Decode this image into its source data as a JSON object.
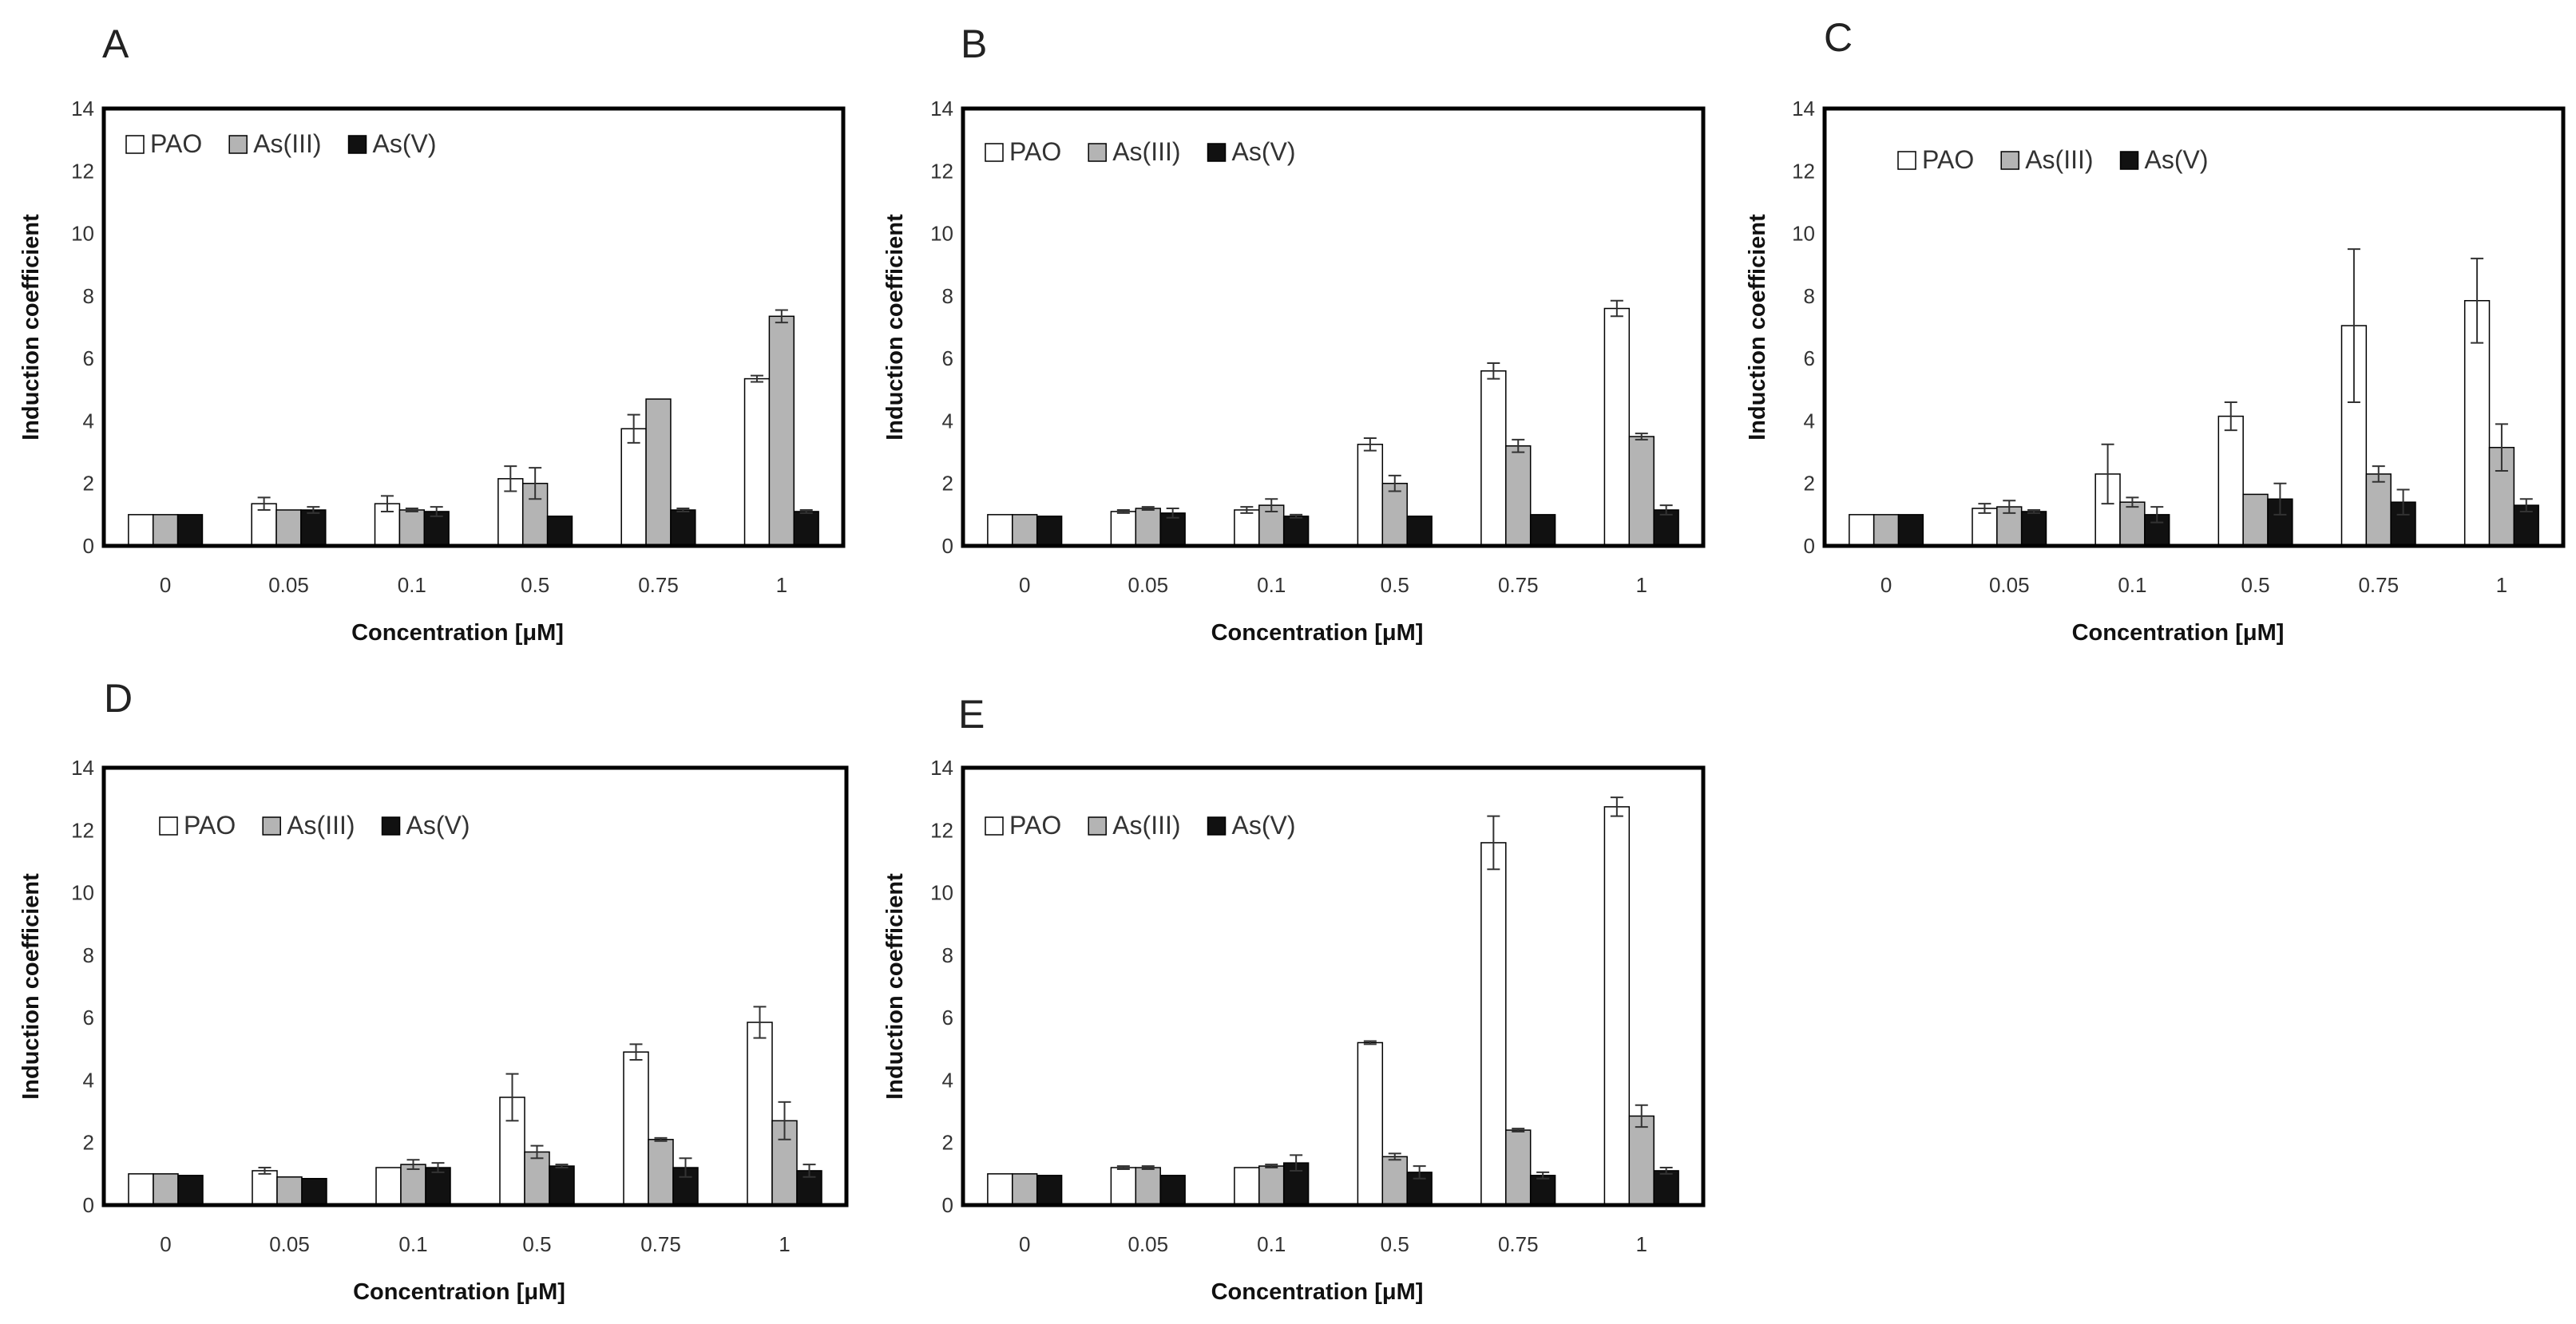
{
  "figure": {
    "colors": {
      "PAO": "#ffffff",
      "As(III)": "#b4b4b4",
      "As(V)": "#111111",
      "frame": "#000000"
    }
  },
  "chart_data": [
    {
      "panel": "A",
      "type": "bar",
      "categories": [
        "0",
        "0.05",
        "0.1",
        "0.5",
        "0.75",
        "1"
      ],
      "xlabel": "Concentration [μM]",
      "ylabel": "Induction coefficient",
      "ylim": [
        0,
        14
      ],
      "yticks": [
        "0",
        "2",
        "4",
        "6",
        "8",
        "10",
        "12",
        "14"
      ],
      "legend": "top-left",
      "series": [
        {
          "name": "PAO",
          "values": [
            1.0,
            1.35,
            1.35,
            2.15,
            3.75,
            5.35
          ],
          "errors": [
            0,
            0.2,
            0.25,
            0.4,
            0.45,
            0.1
          ]
        },
        {
          "name": "As(III)",
          "values": [
            1.0,
            1.15,
            1.15,
            2.0,
            4.7,
            7.35
          ],
          "errors": [
            0,
            0,
            0.05,
            0.5,
            0,
            0.2
          ]
        },
        {
          "name": "As(V)",
          "values": [
            1.0,
            1.15,
            1.1,
            0.95,
            1.15,
            1.1
          ],
          "errors": [
            0,
            0.1,
            0.15,
            0,
            0.05,
            0.05
          ]
        }
      ]
    },
    {
      "panel": "B",
      "type": "bar",
      "categories": [
        "0",
        "0.05",
        "0.1",
        "0.5",
        "0.75",
        "1"
      ],
      "xlabel": "Concentration [μM]",
      "ylabel": "Induction coefficient",
      "ylim": [
        0,
        14
      ],
      "yticks": [
        "0",
        "2",
        "4",
        "6",
        "8",
        "10",
        "12",
        "14"
      ],
      "legend": "top-left",
      "series": [
        {
          "name": "PAO",
          "values": [
            1.0,
            1.1,
            1.15,
            3.25,
            5.6,
            7.6
          ],
          "errors": [
            0,
            0.05,
            0.1,
            0.2,
            0.25,
            0.25
          ]
        },
        {
          "name": "As(III)",
          "values": [
            1.0,
            1.2,
            1.3,
            2.0,
            3.2,
            3.5
          ],
          "errors": [
            0,
            0.05,
            0.2,
            0.25,
            0.2,
            0.1
          ]
        },
        {
          "name": "As(V)",
          "values": [
            0.95,
            1.05,
            0.95,
            0.95,
            1.0,
            1.15
          ],
          "errors": [
            0,
            0.15,
            0.05,
            0,
            0,
            0.15
          ]
        }
      ]
    },
    {
      "panel": "C",
      "type": "bar",
      "categories": [
        "0",
        "0.05",
        "0.1",
        "0.5",
        "0.75",
        "1"
      ],
      "xlabel": "Concentration [μM]",
      "ylabel": "Induction coefficient",
      "ylim": [
        0,
        14
      ],
      "yticks": [
        "0",
        "2",
        "4",
        "6",
        "8",
        "10",
        "12",
        "14"
      ],
      "legend": "top-left",
      "series": [
        {
          "name": "PAO",
          "values": [
            1.0,
            1.2,
            2.3,
            4.15,
            7.05,
            7.85
          ],
          "errors": [
            0,
            0.15,
            0.95,
            0.45,
            2.45,
            1.35
          ]
        },
        {
          "name": "As(III)",
          "values": [
            1.0,
            1.25,
            1.4,
            1.65,
            2.3,
            3.15
          ],
          "errors": [
            0,
            0.2,
            0.15,
            0,
            0.25,
            0.75
          ]
        },
        {
          "name": "As(V)",
          "values": [
            1.0,
            1.1,
            1.0,
            1.5,
            1.4,
            1.3
          ],
          "errors": [
            0,
            0.05,
            0.25,
            0.5,
            0.4,
            0.2
          ]
        }
      ]
    },
    {
      "panel": "D",
      "type": "bar",
      "categories": [
        "0",
        "0.05",
        "0.1",
        "0.5",
        "0.75",
        "1"
      ],
      "xlabel": "Concentration [μM]",
      "ylabel": "Induction coefficient",
      "ylim": [
        0,
        14
      ],
      "yticks": [
        "0",
        "2",
        "4",
        "6",
        "8",
        "10",
        "12",
        "14"
      ],
      "legend": "top-left",
      "series": [
        {
          "name": "PAO",
          "values": [
            1.0,
            1.1,
            1.2,
            3.45,
            4.9,
            5.85
          ],
          "errors": [
            0,
            0.1,
            0,
            0.75,
            0.25,
            0.5
          ]
        },
        {
          "name": "As(III)",
          "values": [
            1.0,
            0.9,
            1.3,
            1.7,
            2.1,
            2.7
          ],
          "errors": [
            0,
            0,
            0.15,
            0.2,
            0.05,
            0.6
          ]
        },
        {
          "name": "As(V)",
          "values": [
            0.95,
            0.85,
            1.2,
            1.25,
            1.2,
            1.1
          ],
          "errors": [
            0,
            0,
            0.15,
            0.05,
            0.3,
            0.2
          ]
        }
      ]
    },
    {
      "panel": "E",
      "type": "bar",
      "categories": [
        "0",
        "0.05",
        "0.1",
        "0.5",
        "0.75",
        "1"
      ],
      "xlabel": "Concentration [μM]",
      "ylabel": "Induction coefficient",
      "ylim": [
        0,
        14
      ],
      "yticks": [
        "0",
        "2",
        "4",
        "6",
        "8",
        "10",
        "12",
        "14"
      ],
      "legend": "top-left",
      "series": [
        {
          "name": "PAO",
          "values": [
            1.0,
            1.2,
            1.2,
            5.2,
            11.6,
            12.75
          ],
          "errors": [
            0,
            0.05,
            0,
            0.05,
            0.85,
            0.3
          ]
        },
        {
          "name": "As(III)",
          "values": [
            1.0,
            1.2,
            1.25,
            1.55,
            2.4,
            2.85
          ],
          "errors": [
            0,
            0.05,
            0.05,
            0.1,
            0.05,
            0.35
          ]
        },
        {
          "name": "As(V)",
          "values": [
            0.95,
            0.95,
            1.35,
            1.05,
            0.95,
            1.1
          ],
          "errors": [
            0,
            0,
            0.25,
            0.2,
            0.1,
            0.1
          ]
        }
      ]
    }
  ]
}
